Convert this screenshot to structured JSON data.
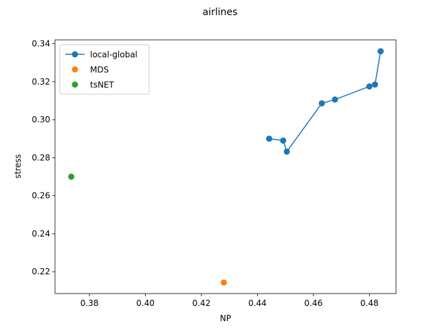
{
  "chart_data": {
    "type": "line",
    "title": "airlines",
    "xlabel": "NP",
    "ylabel": "stress",
    "xlim": [
      0.3677,
      0.4895
    ],
    "ylim": [
      0.2085,
      0.342
    ],
    "xticks": [
      0.38,
      0.4,
      0.42,
      0.44,
      0.46,
      0.48
    ],
    "yticks": [
      0.22,
      0.24,
      0.26,
      0.28,
      0.3,
      0.32,
      0.34
    ],
    "xtick_labels": [
      "0.38",
      "0.40",
      "0.42",
      "0.44",
      "0.46",
      "0.48"
    ],
    "ytick_labels": [
      "0.22",
      "0.24",
      "0.26",
      "0.28",
      "0.30",
      "0.32",
      "0.34"
    ],
    "grid": false,
    "legend_position": "upper-left",
    "series": [
      {
        "name": "local-global",
        "color": "#1f77b4",
        "style": "line-marker",
        "points": [
          [
            0.4442,
            0.29
          ],
          [
            0.4492,
            0.289
          ],
          [
            0.4505,
            0.2832
          ],
          [
            0.463,
            0.3086
          ],
          [
            0.4677,
            0.3106
          ],
          [
            0.48,
            0.3175
          ],
          [
            0.482,
            0.3185
          ],
          [
            0.484,
            0.336
          ]
        ]
      },
      {
        "name": "MDS",
        "color": "#ff7f0e",
        "style": "marker",
        "points": [
          [
            0.428,
            0.2143
          ]
        ]
      },
      {
        "name": "tsNET",
        "color": "#2ca02c",
        "style": "marker",
        "points": [
          [
            0.3735,
            0.27
          ]
        ]
      }
    ]
  }
}
